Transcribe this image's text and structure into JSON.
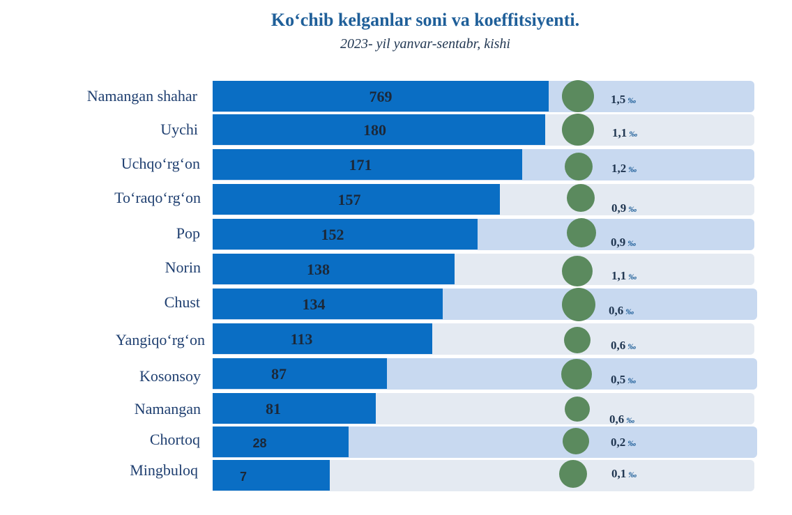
{
  "chart_data": {
    "type": "bar",
    "title": "Ko‘chib kelganlar soni va koeffitsiyenti.",
    "subtitle": "2023- yil yanvar-sentabr, kishi",
    "coefficient_unit": "‰",
    "categories": [
      "Namangan shahar",
      "Uychi",
      "Uchqo‘rg‘on",
      "To‘raqo‘rg‘on",
      "Pop",
      "Norin",
      "Chust",
      "Yangiqo‘rg‘on",
      "Kosonsoy",
      "Namangan",
      "Chortoq",
      "Mingbuloq"
    ],
    "series": [
      {
        "name": "kishi",
        "values": [
          769,
          180,
          171,
          157,
          152,
          138,
          134,
          113,
          87,
          81,
          28,
          7
        ]
      },
      {
        "name": "koeffitsiyent",
        "values": [
          "1,5",
          "1,1",
          "1,2",
          "0,9",
          "0,9",
          "1,1",
          "0,6",
          "0,6",
          "0,5",
          "0,6",
          "0,2",
          "0,1"
        ]
      }
    ]
  }
}
